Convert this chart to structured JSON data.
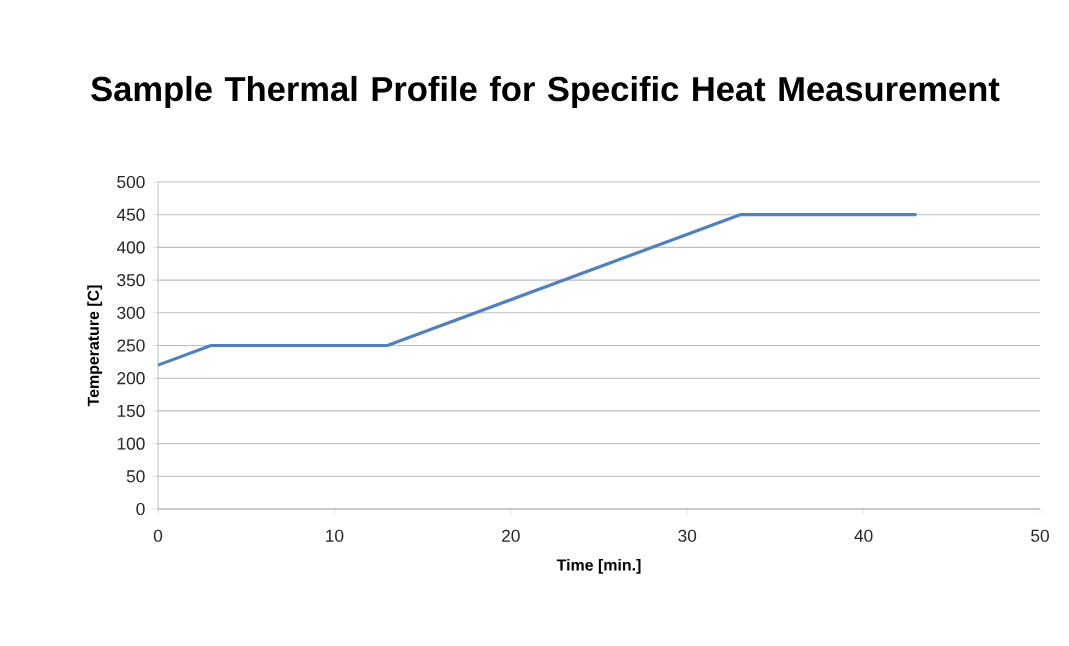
{
  "chart_data": {
    "type": "line",
    "title": "Sample Thermal Profile for Specific Heat Measurement",
    "xlabel": "Time [min.]",
    "ylabel": "Temperature [C]",
    "x": [
      0,
      3,
      13,
      33,
      43
    ],
    "series": [
      {
        "color": "#4f81bd",
        "values": [
          220,
          250,
          250,
          450,
          450
        ]
      }
    ],
    "xlim": [
      0,
      50
    ],
    "xticks": [
      0,
      10,
      20,
      30,
      40,
      50
    ],
    "ylim": [
      0,
      500
    ],
    "yticks": [
      0,
      50,
      100,
      150,
      200,
      250,
      300,
      350,
      400,
      450,
      500
    ],
    "grid": "y",
    "marker": "none",
    "line_style": "solid"
  }
}
